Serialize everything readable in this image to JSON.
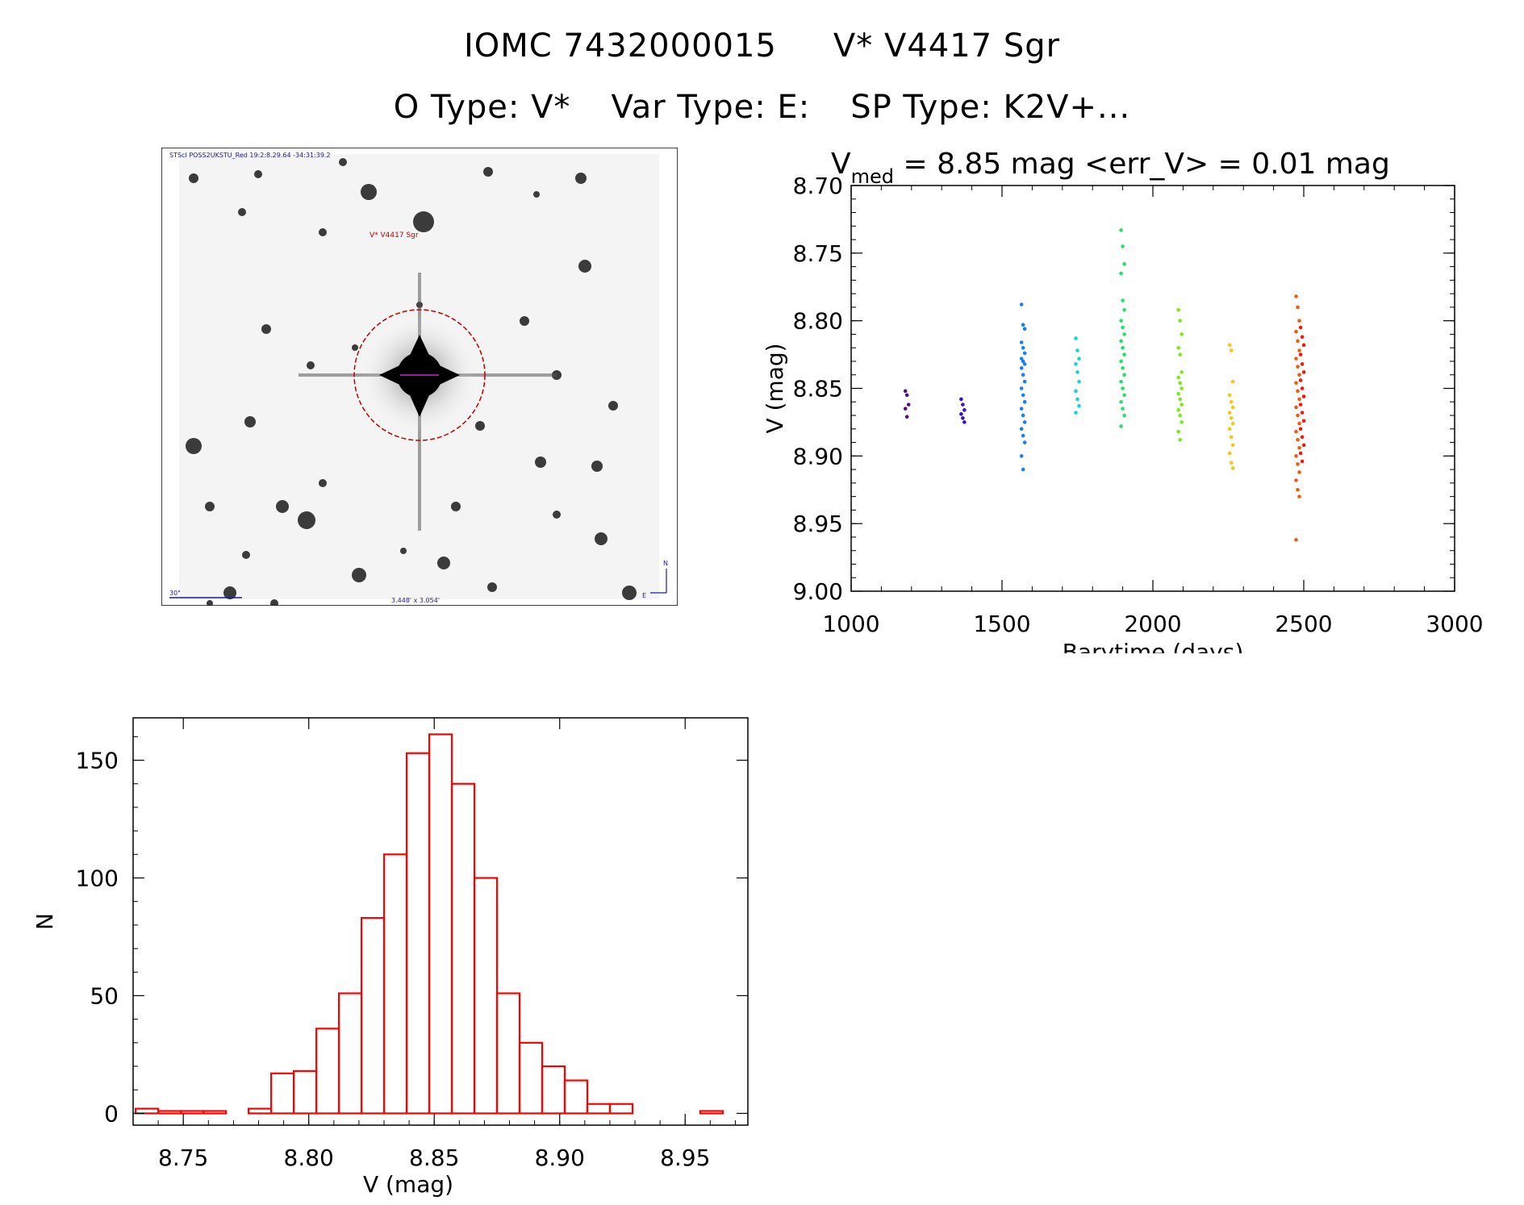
{
  "header": {
    "object_id": "IOMC 7432000015",
    "object_name": "V* V4417 Sgr",
    "o_type": "O Type: V*",
    "var_type": "Var Type: E:",
    "sp_type": "SP Type: K2V+..."
  },
  "image_panel": {
    "header_text": "STScI POSS2UKSTU_Red 19:2:8.29.64 -34:31:39.2",
    "target_label": "V* V4417 Sgr",
    "scale_label": "30\"",
    "size_label": "3.448' x 3.054'",
    "compass_n": "N",
    "compass_e": "E"
  },
  "chart_data": [
    {
      "type": "scatter",
      "title_prefix": "V",
      "title_sub": "med",
      "title_rest": " = 8.85 mag <err_V> = 0.01 mag",
      "xlabel": "Barytime (days)",
      "ylabel": "V (mag)",
      "xlim": [
        1000,
        3000
      ],
      "ylim": [
        9.0,
        8.7
      ],
      "xticks": [
        "1000",
        "1500",
        "2000",
        "2500",
        "3000"
      ],
      "yticks": [
        "8.70",
        "8.75",
        "8.80",
        "8.85",
        "8.90",
        "8.95",
        "9.00"
      ],
      "series": [
        {
          "color": "#5b0a82",
          "x": 1185,
          "y": [
            8.852,
            8.855,
            8.862,
            8.865,
            8.871
          ]
        },
        {
          "color": "#3a10c0",
          "x": 1370,
          "y": [
            8.858,
            8.862,
            8.866,
            8.869,
            8.872,
            8.875
          ]
        },
        {
          "color": "#1a7ff0",
          "x": 1570,
          "y": [
            8.788,
            8.803,
            8.806,
            8.816,
            8.82,
            8.824,
            8.828,
            8.83,
            8.832,
            8.835,
            8.84,
            8.845,
            8.85,
            8.855,
            8.86,
            8.865,
            8.87,
            8.875,
            8.88,
            8.885,
            8.89,
            8.9,
            8.91
          ]
        },
        {
          "color": "#18d3d3",
          "x": 1750,
          "y": [
            8.813,
            8.822,
            8.828,
            8.832,
            8.838,
            8.845,
            8.852,
            8.858,
            8.863,
            8.868
          ]
        },
        {
          "color": "#26e06a",
          "x": 1900,
          "y": [
            8.733,
            8.745,
            8.758,
            8.765,
            8.785,
            8.792,
            8.8,
            8.805,
            8.81,
            8.815,
            8.82,
            8.825,
            8.83,
            8.835,
            8.84,
            8.845,
            8.85,
            8.855,
            8.86,
            8.865,
            8.87,
            8.878
          ]
        },
        {
          "color": "#7ee81a",
          "x": 2090,
          "y": [
            8.792,
            8.8,
            8.81,
            8.82,
            8.825,
            8.838,
            8.842,
            8.846,
            8.85,
            8.854,
            8.858,
            8.862,
            8.866,
            8.87,
            8.875,
            8.882,
            8.888
          ]
        },
        {
          "color": "#f2c814",
          "x": 2260,
          "y": [
            8.818,
            8.822,
            8.845,
            8.855,
            8.86,
            8.864,
            8.868,
            8.872,
            8.876,
            8.88,
            8.886,
            8.892,
            8.898,
            8.905,
            8.909
          ]
        },
        {
          "color": "#f25a14",
          "x": 2480,
          "y": [
            8.782,
            8.79,
            8.8,
            8.808,
            8.815,
            8.822,
            8.828,
            8.834,
            8.84,
            8.846,
            8.852,
            8.858,
            8.864,
            8.87,
            8.876,
            8.882,
            8.888,
            8.894,
            8.9,
            8.906,
            8.912,
            8.918,
            8.925,
            8.93,
            8.962
          ]
        },
        {
          "color": "#f21a10",
          "x": 2495,
          "y": [
            8.805,
            8.812,
            8.818,
            8.825,
            8.832,
            8.838,
            8.844,
            8.85,
            8.856,
            8.862,
            8.868,
            8.874,
            8.88,
            8.886,
            8.892,
            8.898,
            8.904
          ]
        }
      ]
    },
    {
      "type": "bar",
      "xlabel": "V (mag)",
      "ylabel": "N",
      "xlim": [
        8.73,
        8.975
      ],
      "ylim": [
        -5,
        168
      ],
      "xticks": [
        "8.75",
        "8.80",
        "8.85",
        "8.90",
        "8.95"
      ],
      "yticks": [
        "0",
        "50",
        "100",
        "150"
      ],
      "bar_color": "#ff0000",
      "bin_width": 0.009,
      "bins": [
        8.7355,
        8.7625,
        8.7805,
        8.7895,
        8.7985,
        8.8075,
        8.8165,
        8.8255,
        8.8345,
        8.8435,
        8.8525,
        8.8615,
        8.8705,
        8.8795,
        8.8885,
        8.8975,
        8.9065,
        8.9155,
        8.9245,
        8.9605
      ],
      "counts": [
        2,
        1,
        2,
        17,
        18,
        36,
        51,
        83,
        110,
        153,
        161,
        140,
        100,
        51,
        30,
        20,
        14,
        4,
        4,
        1
      ],
      "gap_bins": [
        [
          8.7445,
          1
        ],
        [
          8.7535,
          1
        ]
      ]
    }
  ]
}
